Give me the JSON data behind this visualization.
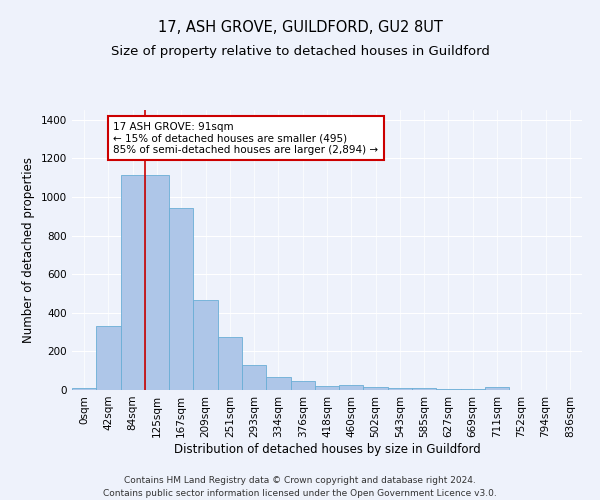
{
  "title_line1": "17, ASH GROVE, GUILDFORD, GU2 8UT",
  "title_line2": "Size of property relative to detached houses in Guildford",
  "xlabel": "Distribution of detached houses by size in Guildford",
  "ylabel": "Number of detached properties",
  "footer_line1": "Contains HM Land Registry data © Crown copyright and database right 2024.",
  "footer_line2": "Contains public sector information licensed under the Open Government Licence v3.0.",
  "categories": [
    "0sqm",
    "42sqm",
    "84sqm",
    "125sqm",
    "167sqm",
    "209sqm",
    "251sqm",
    "293sqm",
    "334sqm",
    "376sqm",
    "418sqm",
    "460sqm",
    "502sqm",
    "543sqm",
    "585sqm",
    "627sqm",
    "669sqm",
    "711sqm",
    "752sqm",
    "794sqm",
    "836sqm"
  ],
  "values": [
    10,
    330,
    1115,
    1115,
    945,
    465,
    275,
    130,
    65,
    47,
    20,
    25,
    18,
    10,
    8,
    5,
    3,
    13,
    2,
    2,
    2
  ],
  "bar_color": "#aec6e8",
  "bar_edge_color": "#6aaed6",
  "vline_x": 2.5,
  "vline_color": "#cc0000",
  "annotation_text": "17 ASH GROVE: 91sqm\n← 15% of detached houses are smaller (495)\n85% of semi-detached houses are larger (2,894) →",
  "annotation_box_color": "#ffffff",
  "annotation_box_edge": "#cc0000",
  "ylim": [
    0,
    1450
  ],
  "yticks": [
    0,
    200,
    400,
    600,
    800,
    1000,
    1200,
    1400
  ],
  "background_color": "#eef2fb",
  "grid_color": "#ffffff",
  "title_fontsize": 10.5,
  "subtitle_fontsize": 9.5,
  "axis_label_fontsize": 8.5,
  "tick_fontsize": 7.5,
  "footer_fontsize": 6.5,
  "annotation_fontsize": 7.5
}
